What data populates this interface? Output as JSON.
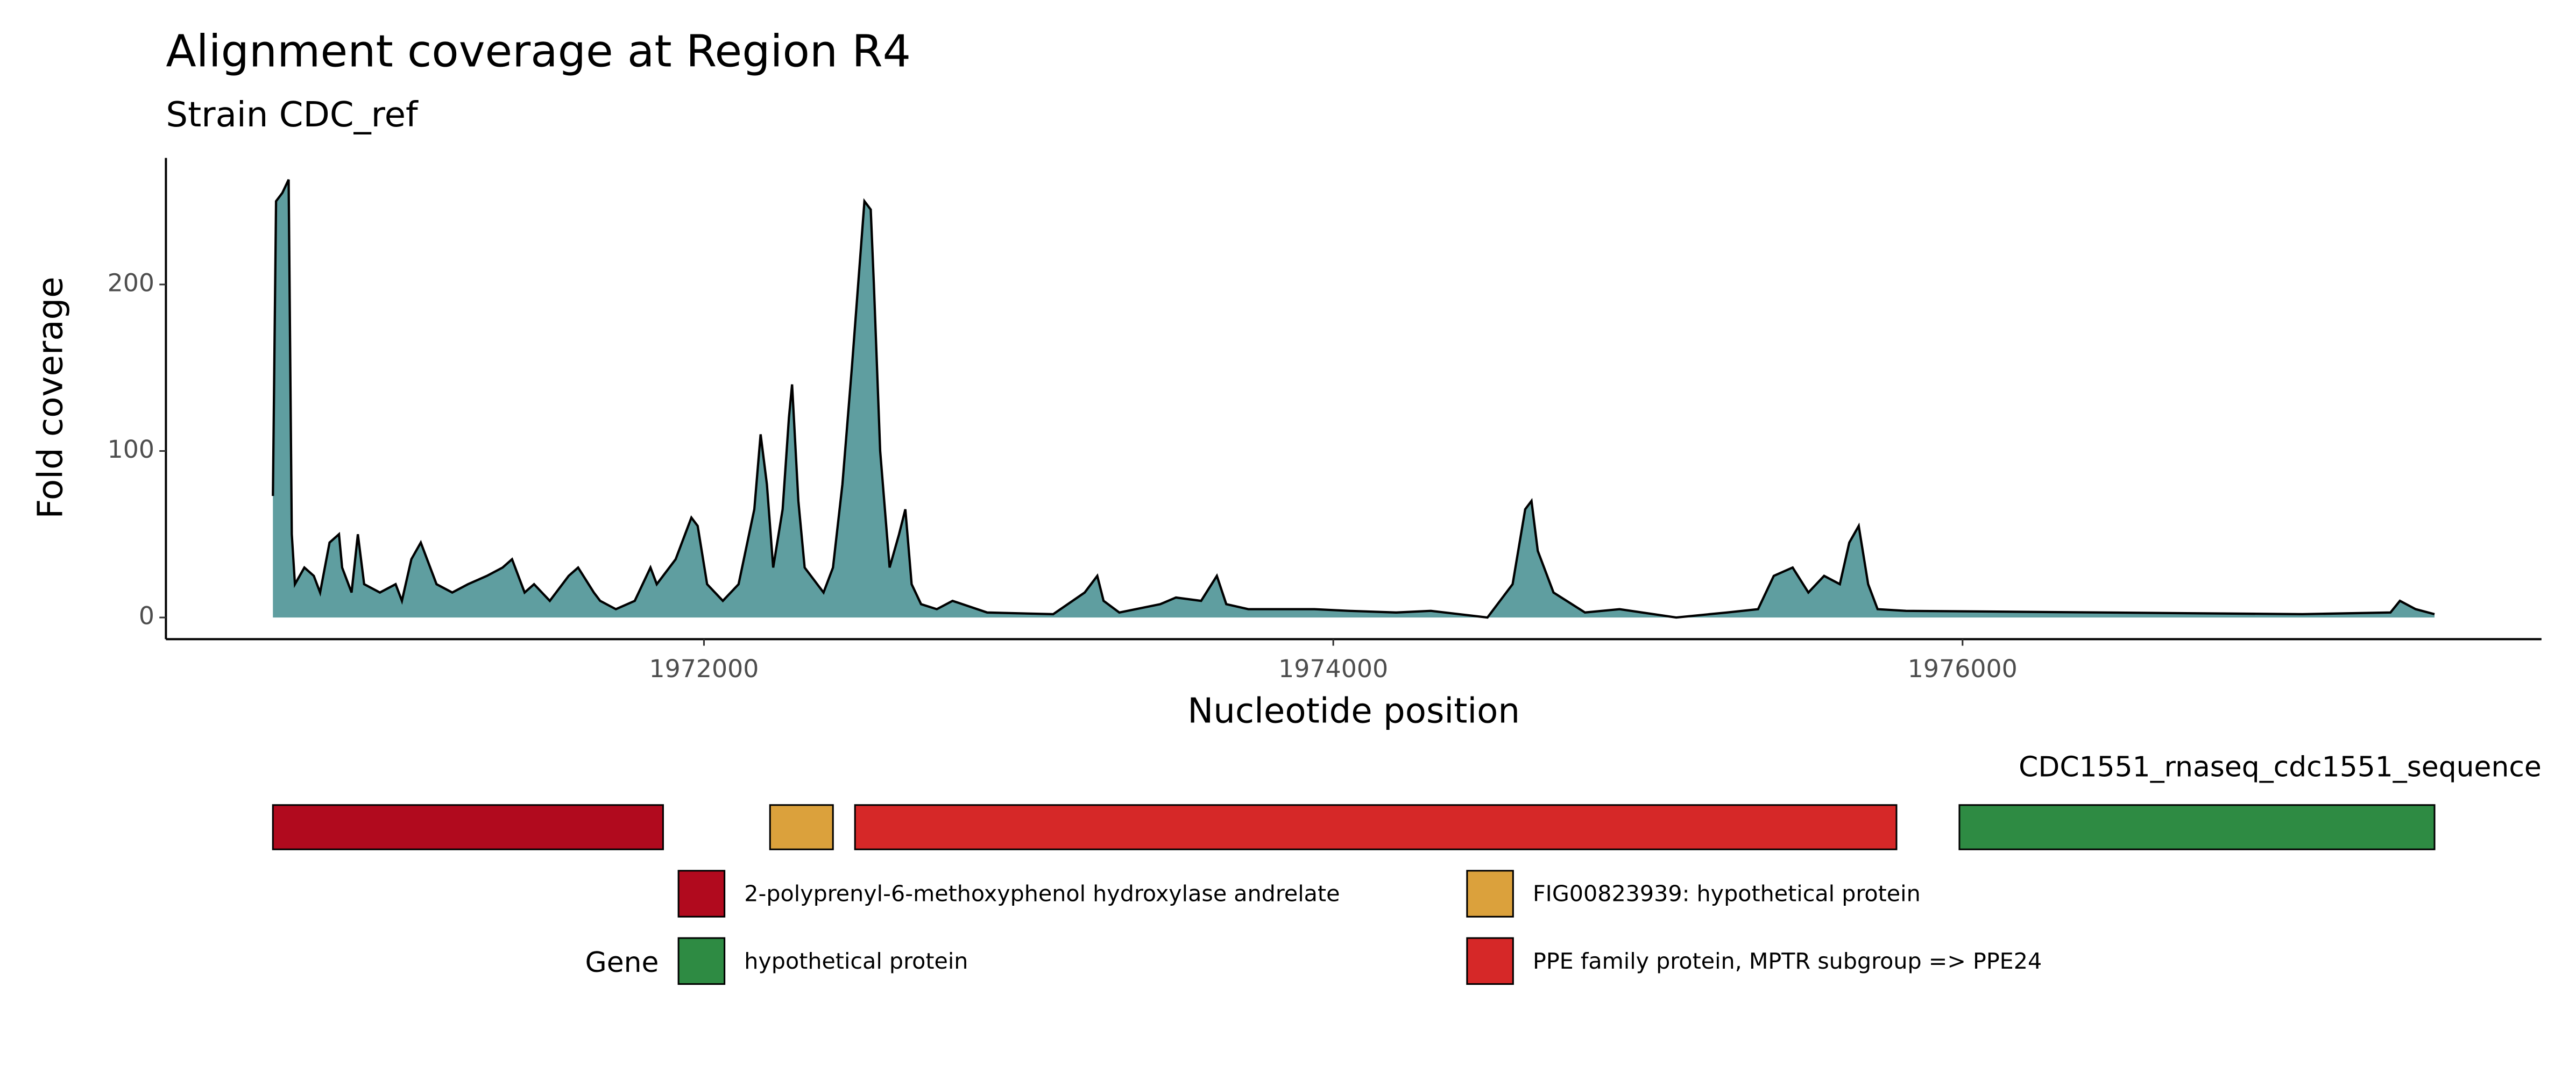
{
  "chart_data": {
    "type": "area",
    "title": "Alignment coverage at Region R4",
    "subtitle": "Strain CDC_ref",
    "x_label": "Nucleotide position",
    "y_label": "Fold coverage",
    "color": "#5f9ea0",
    "x": [
      1970630,
      1970640,
      1970660,
      1970680,
      1970690,
      1970700,
      1970730,
      1970760,
      1970780,
      1970810,
      1970840,
      1970850,
      1970880,
      1970900,
      1970920,
      1970970,
      1971020,
      1971040,
      1971070,
      1971100,
      1971120,
      1971150,
      1971200,
      1971250,
      1971310,
      1971360,
      1971390,
      1971430,
      1971460,
      1971510,
      1971570,
      1971600,
      1971650,
      1971670,
      1971720,
      1971780,
      1971830,
      1971850,
      1971910,
      1971940,
      1971960,
      1971980,
      1972010,
      1972060,
      1972110,
      1972160,
      1972180,
      1972200,
      1972220,
      1972250,
      1972270,
      1972280,
      1972300,
      1972320,
      1972380,
      1972410,
      1972440,
      1972470,
      1972490,
      1972510,
      1972530,
      1972540,
      1972560,
      1972590,
      1972620,
      1972640,
      1972660,
      1972690,
      1972740,
      1972790,
      1972900,
      1973110,
      1973210,
      1973250,
      1973270,
      1973320,
      1973450,
      1973500,
      1973580,
      1973630,
      1973660,
      1973730,
      1973840,
      1973940,
      1974050,
      1974200,
      1974310,
      1974490,
      1974570,
      1974610,
      1974630,
      1974650,
      1974700,
      1974800,
      1974910,
      1975090,
      1975250,
      1975350,
      1975400,
      1975460,
      1975510,
      1975560,
      1975610,
      1975640,
      1975670,
      1975700,
      1975730,
      1975820,
      1977080,
      1977360,
      1977390,
      1977440,
      1977500
    ],
    "values": [
      73,
      250,
      255,
      263,
      50,
      20,
      30,
      25,
      15,
      45,
      50,
      30,
      15,
      50,
      20,
      15,
      20,
      10,
      35,
      45,
      35,
      20,
      15,
      20,
      25,
      30,
      35,
      15,
      20,
      10,
      25,
      30,
      15,
      10,
      5,
      10,
      30,
      20,
      35,
      50,
      60,
      55,
      20,
      10,
      20,
      65,
      110,
      80,
      30,
      65,
      120,
      140,
      70,
      30,
      15,
      30,
      80,
      150,
      200,
      250,
      245,
      200,
      100,
      30,
      50,
      65,
      20,
      8,
      5,
      10,
      3,
      2,
      15,
      25,
      10,
      3,
      8,
      12,
      10,
      25,
      8,
      5,
      5,
      5,
      4,
      3,
      4,
      0,
      20,
      65,
      70,
      40,
      15,
      3,
      5,
      0,
      3,
      5,
      25,
      30,
      15,
      25,
      20,
      45,
      55,
      20,
      5,
      4,
      2,
      3,
      10,
      5,
      2
    ],
    "xlim": [
      1970290,
      1977840
    ],
    "ylim": [
      -13,
      276
    ],
    "xticks": [
      1972000,
      1974000,
      1976000
    ],
    "yticks": [
      0,
      100,
      200
    ],
    "track_label": "CDC1551_rnaseq_cdc1551_sequence",
    "genes": [
      {
        "start": 1970630,
        "end": 1971870,
        "color": "#b10a1e"
      },
      {
        "start": 1972210,
        "end": 1972410,
        "color": "#dba13c"
      },
      {
        "start": 1972480,
        "end": 1975790,
        "color": "#d62828"
      },
      {
        "start": 1975990,
        "end": 1977500,
        "color": "#2e8b43"
      }
    ],
    "legend_title": "Gene",
    "legend": [
      {
        "name": "2-polyprenyl-6-methoxyphenol hydroxylase andrelate",
        "color": "#b10a1e"
      },
      {
        "name": "FIG00823939: hypothetical protein",
        "color": "#dba13c"
      },
      {
        "name": "hypothetical protein",
        "color": "#2e8b43"
      },
      {
        "name": "PPE family protein, MPTR subgroup => PPE24",
        "color": "#d62828"
      }
    ]
  }
}
